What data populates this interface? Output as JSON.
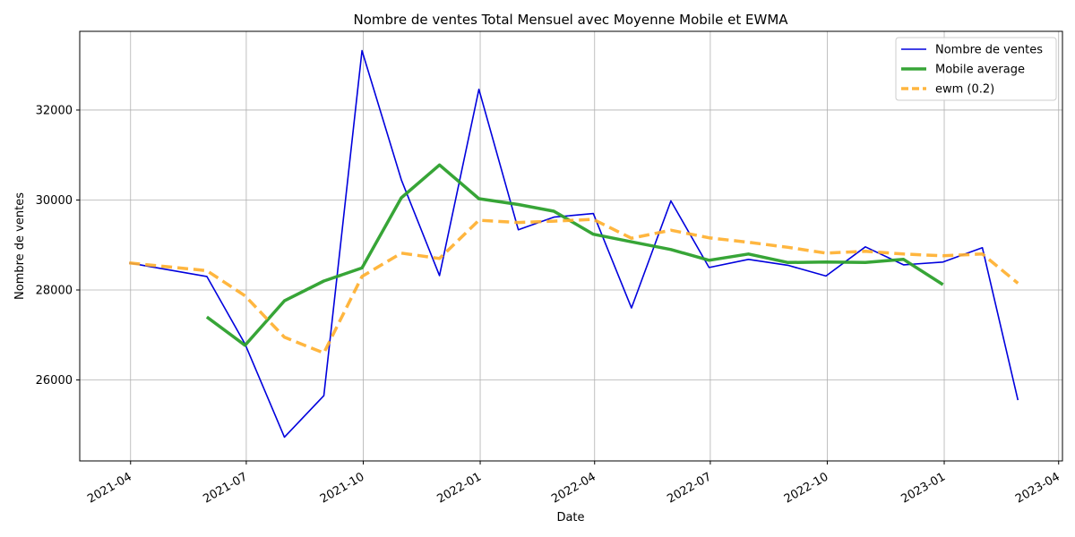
{
  "chart_data": {
    "type": "line",
    "title": "Nombre de ventes Total Mensuel avec Moyenne Mobile et EWMA",
    "xlabel": "Date",
    "ylabel": "Nombre de ventes",
    "x_ticks": [
      "2021-04",
      "2021-07",
      "2021-10",
      "2022-01",
      "2022-04",
      "2022-07",
      "2022-10",
      "2023-01",
      "2023-04"
    ],
    "x_range": [
      "2021-02-20",
      "2023-04-04"
    ],
    "y_ticks": [
      26000,
      28000,
      30000,
      32000
    ],
    "ylim": [
      24200,
      33750
    ],
    "grid": true,
    "legend_position": "top-right",
    "dates": [
      "2021-03-31",
      "2021-04-30",
      "2021-05-31",
      "2021-06-30",
      "2021-07-31",
      "2021-08-31",
      "2021-09-30",
      "2021-10-31",
      "2021-11-30",
      "2021-12-31",
      "2022-01-31",
      "2022-02-28",
      "2022-03-31",
      "2022-04-30",
      "2022-05-31",
      "2022-06-30",
      "2022-07-31",
      "2022-08-31",
      "2022-09-30",
      "2022-10-31",
      "2022-11-30",
      "2022-12-31",
      "2023-01-31",
      "2023-02-28"
    ],
    "series": [
      {
        "name": "Nombre de ventes",
        "color": "#0000dd",
        "style": "solid",
        "values": [
          28600,
          null,
          28300,
          26800,
          24730,
          25650,
          33320,
          30450,
          28320,
          32460,
          29340,
          29620,
          29700,
          27600,
          29980,
          28500,
          28680,
          28550,
          28310,
          28960,
          28560,
          28620,
          28940,
          25550
        ]
      },
      {
        "name": "Mobile average",
        "color": "#2ca02c",
        "style": "solid-thick",
        "values": [
          null,
          null,
          27400,
          26770,
          27760,
          28200,
          28490,
          30050,
          30780,
          30030,
          29900,
          29750,
          29240,
          29070,
          28900,
          28660,
          28800,
          28610,
          28620,
          28610,
          28680,
          28120,
          null,
          null
        ]
      },
      {
        "name": "ewm (0.2)",
        "color": "#ffae2a",
        "style": "dashed",
        "values": [
          28600,
          null,
          28430,
          27870,
          26950,
          26600,
          28300,
          28820,
          28700,
          29550,
          29500,
          29530,
          29570,
          29150,
          29330,
          29160,
          29060,
          28950,
          28820,
          28860,
          28800,
          28760,
          28800,
          28150
        ]
      }
    ]
  }
}
